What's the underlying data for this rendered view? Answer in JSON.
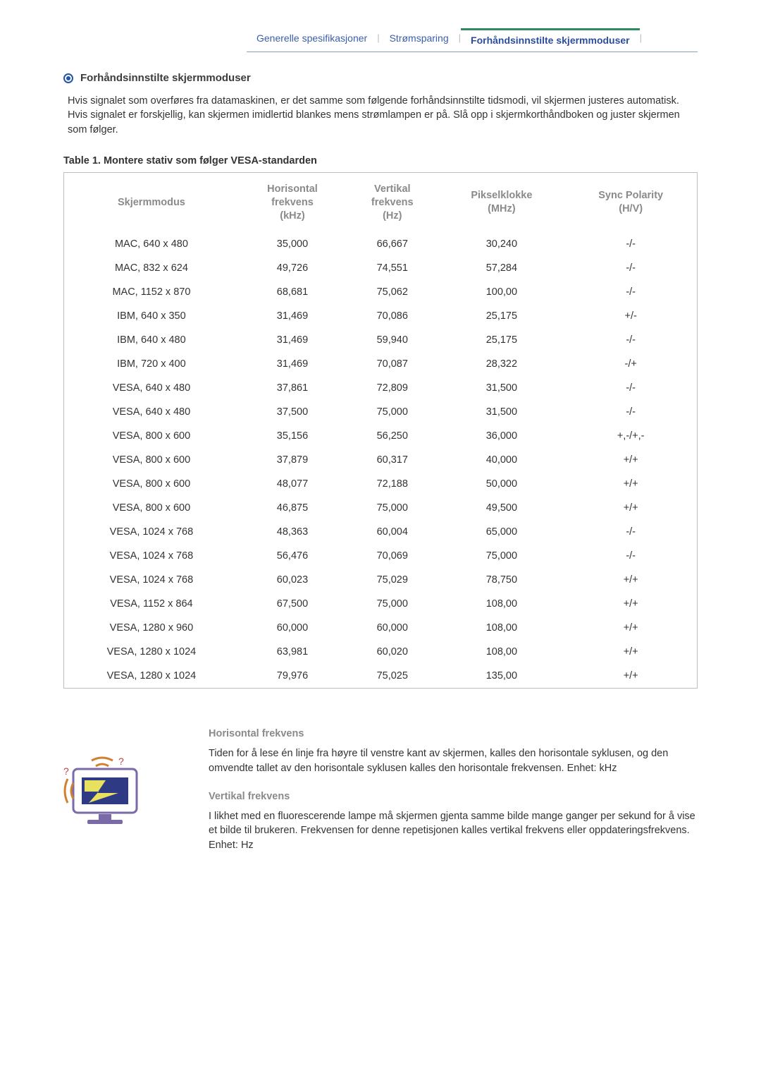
{
  "tabs": {
    "items": [
      {
        "label": "Generelle spesifikasjoner",
        "active": false
      },
      {
        "label": "Strømsparing",
        "active": false
      },
      {
        "label": "Forhåndsinnstilte skjermmoduser",
        "active": true
      }
    ]
  },
  "section": {
    "title": "Forhåndsinnstilte skjermmoduser",
    "intro": "Hvis signalet som overføres fra datamaskinen, er det samme som følgende forhåndsinnstilte tidsmodi, vil skjermen justeres automatisk. Hvis signalet er forskjellig, kan skjermen imidlertid blankes mens strømlampen er på. Slå opp i skjermkorthåndboken og juster skjermen som følger."
  },
  "table": {
    "caption": "Table 1. Montere stativ som følger VESA-standarden",
    "headers": {
      "mode": "Skjermmodus",
      "hfreq": "Horisontal frekvens (kHz)",
      "vfreq": "Vertikal frekvens (Hz)",
      "pclk": "Pikselklokke (MHz)",
      "sync": "Sync Polarity (H/V)"
    },
    "rows": [
      {
        "mode": "MAC, 640 x 480",
        "hfreq": "35,000",
        "vfreq": "66,667",
        "pclk": "30,240",
        "sync": "-/-"
      },
      {
        "mode": "MAC, 832 x 624",
        "hfreq": "49,726",
        "vfreq": "74,551",
        "pclk": "57,284",
        "sync": "-/-"
      },
      {
        "mode": "MAC, 1152 x 870",
        "hfreq": "68,681",
        "vfreq": "75,062",
        "pclk": "100,00",
        "sync": "-/-"
      },
      {
        "mode": "IBM, 640 x 350",
        "hfreq": "31,469",
        "vfreq": "70,086",
        "pclk": "25,175",
        "sync": "+/-"
      },
      {
        "mode": "IBM, 640 x 480",
        "hfreq": "31,469",
        "vfreq": "59,940",
        "pclk": "25,175",
        "sync": "-/-"
      },
      {
        "mode": "IBM, 720 x 400",
        "hfreq": "31,469",
        "vfreq": "70,087",
        "pclk": "28,322",
        "sync": "-/+"
      },
      {
        "mode": "VESA, 640 x 480",
        "hfreq": "37,861",
        "vfreq": "72,809",
        "pclk": "31,500",
        "sync": "-/-"
      },
      {
        "mode": "VESA, 640 x 480",
        "hfreq": "37,500",
        "vfreq": "75,000",
        "pclk": "31,500",
        "sync": "-/-"
      },
      {
        "mode": "VESA, 800 x 600",
        "hfreq": "35,156",
        "vfreq": "56,250",
        "pclk": "36,000",
        "sync": "+,-/+,-"
      },
      {
        "mode": "VESA, 800 x 600",
        "hfreq": "37,879",
        "vfreq": "60,317",
        "pclk": "40,000",
        "sync": "+/+"
      },
      {
        "mode": "VESA, 800 x 600",
        "hfreq": "48,077",
        "vfreq": "72,188",
        "pclk": "50,000",
        "sync": "+/+"
      },
      {
        "mode": "VESA, 800 x 600",
        "hfreq": "46,875",
        "vfreq": "75,000",
        "pclk": "49,500",
        "sync": "+/+"
      },
      {
        "mode": "VESA, 1024 x 768",
        "hfreq": "48,363",
        "vfreq": "60,004",
        "pclk": "65,000",
        "sync": "-/-"
      },
      {
        "mode": "VESA, 1024 x 768",
        "hfreq": "56,476",
        "vfreq": "70,069",
        "pclk": "75,000",
        "sync": "-/-"
      },
      {
        "mode": "VESA, 1024 x 768",
        "hfreq": "60,023",
        "vfreq": "75,029",
        "pclk": "78,750",
        "sync": "+/+"
      },
      {
        "mode": "VESA, 1152 x 864",
        "hfreq": "67,500",
        "vfreq": "75,000",
        "pclk": "108,00",
        "sync": "+/+"
      },
      {
        "mode": "VESA, 1280 x 960",
        "hfreq": "60,000",
        "vfreq": "60,000",
        "pclk": "108,00",
        "sync": "+/+"
      },
      {
        "mode": "VESA, 1280 x 1024",
        "hfreq": "63,981",
        "vfreq": "60,020",
        "pclk": "108,00",
        "sync": "+/+"
      },
      {
        "mode": "VESA, 1280 x 1024",
        "hfreq": "79,976",
        "vfreq": "75,025",
        "pclk": "135,00",
        "sync": "+/+"
      }
    ]
  },
  "definitions": {
    "hfreq": {
      "heading": "Horisontal frekvens",
      "text": "Tiden for å lese én linje fra høyre til venstre kant av skjermen, kalles den horisontale syklusen, og den omvendte tallet av den horisontale syklusen kalles den horisontale frekvensen. Enhet: kHz"
    },
    "vfreq": {
      "heading": "Vertikal frekvens",
      "text": "I likhet med en fluorescerende lampe må skjermen gjenta samme bilde mange ganger per sekund for å vise et bilde til brukeren. Frekvensen for denne repetisjonen kalles vertikal frekvens eller oppdateringsfrekvens. Enhet: Hz"
    }
  }
}
